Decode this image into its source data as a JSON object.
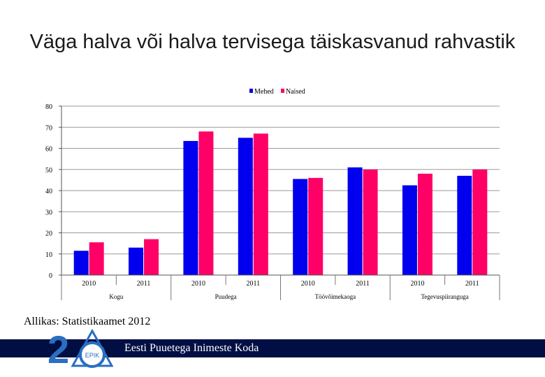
{
  "slide": {
    "title": "Väga halva või halva tervisega täiskasvanud rahvastik",
    "source": "Allikas: Statistikaamet 2012",
    "footer_text": "Eesti Puuetega Inimeste Koda",
    "logo_number": "20",
    "logo_text": "EPIK"
  },
  "colors": {
    "mehed": "#0000ee",
    "naised": "#ff0066",
    "footer": "#000e44"
  },
  "chart_data": {
    "type": "bar",
    "title": "",
    "categories": [
      {
        "group": "Kogu",
        "year": "2010"
      },
      {
        "group": "Kogu",
        "year": "2011"
      },
      {
        "group": "Puudega",
        "year": "2010"
      },
      {
        "group": "Puudega",
        "year": "2011"
      },
      {
        "group": "Töövõimekaoga",
        "year": "2010"
      },
      {
        "group": "Töövõimekaoga",
        "year": "2011"
      },
      {
        "group": "Tegevuspiiranguga",
        "year": "2010"
      },
      {
        "group": "Tegevuspiiranguga",
        "year": "2011"
      }
    ],
    "groups": [
      "Kogu",
      "Puudega",
      "Töövõimekaoga",
      "Tegevuspiiranguga"
    ],
    "series": [
      {
        "name": "Mehed",
        "values": [
          11.5,
          13,
          63.5,
          65,
          45.5,
          51,
          42.5,
          47
        ]
      },
      {
        "name": "Naised",
        "values": [
          15.5,
          17,
          68,
          67,
          46,
          50,
          48,
          50
        ]
      }
    ],
    "ylim": [
      0,
      80
    ],
    "yticks": [
      0,
      10,
      20,
      30,
      40,
      50,
      60,
      70,
      80
    ],
    "grid": true,
    "legend": "top-center"
  }
}
